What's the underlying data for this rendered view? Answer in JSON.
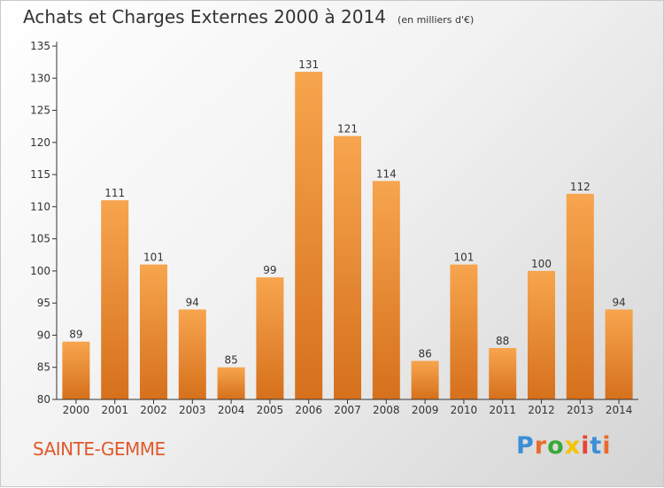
{
  "header": {
    "title": "Achats et Charges Externes 2000 à 2014",
    "unit": "(en milliers d'€)"
  },
  "footer": {
    "commune": "SAINTE-GEMME",
    "logo_text": "Proxiti"
  },
  "colors": {
    "bar_top": "#f7a54e",
    "bar_bottom": "#d6701c",
    "axis": "#333333",
    "commune_text": "#e0592a",
    "logo_letters": [
      "#3b8fd6",
      "#e96b2b",
      "#39a935",
      "#f5c400",
      "#e94335",
      "#3b8fd6",
      "#e96b2b"
    ]
  },
  "chart_data": {
    "type": "bar",
    "title": "Achats et Charges Externes 2000 à 2014",
    "subtitle": "(en milliers d'€)",
    "categories": [
      "2000",
      "2001",
      "2002",
      "2003",
      "2004",
      "2005",
      "2006",
      "2007",
      "2008",
      "2009",
      "2010",
      "2011",
      "2012",
      "2013",
      "2014"
    ],
    "values": [
      89,
      111,
      101,
      94,
      85,
      99,
      131,
      121,
      114,
      86,
      101,
      88,
      100,
      112,
      94
    ],
    "ylim": [
      80,
      135
    ],
    "yticks": [
      80,
      85,
      90,
      95,
      100,
      105,
      110,
      115,
      120,
      125,
      130,
      135
    ],
    "grid": false,
    "legend": "none"
  }
}
